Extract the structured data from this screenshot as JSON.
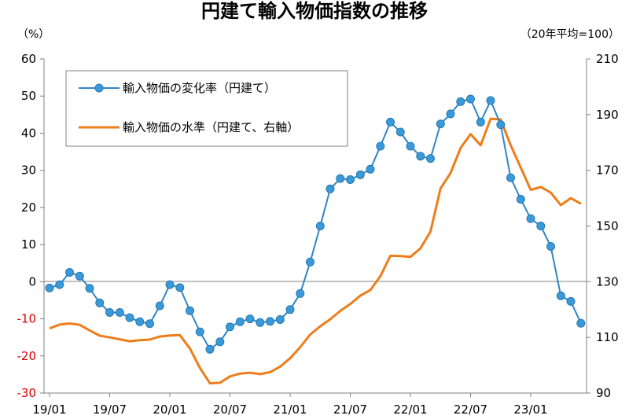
{
  "chart_data": {
    "type": "line",
    "title": "円建て輸入物価指数の推移",
    "left_unit": "（%）",
    "right_unit": "（20年平均=100）",
    "y_left": {
      "min": -30,
      "max": 60,
      "step": 10,
      "ticks": [
        "60",
        "50",
        "40",
        "30",
        "20",
        "10",
        "0",
        "-10",
        "-20",
        "-30"
      ]
    },
    "y_right": {
      "min": 90,
      "max": 210,
      "step": 20,
      "ticks": [
        "210",
        "190",
        "170",
        "150",
        "130",
        "110",
        "90"
      ]
    },
    "x_ticks": [
      "19/01",
      "19/07",
      "20/01",
      "20/07",
      "21/01",
      "21/07",
      "22/01",
      "22/07",
      "23/01"
    ],
    "x_months": [
      "19/01",
      "19/02",
      "19/03",
      "19/04",
      "19/05",
      "19/06",
      "19/07",
      "19/08",
      "19/09",
      "19/10",
      "19/11",
      "19/12",
      "20/01",
      "20/02",
      "20/03",
      "20/04",
      "20/05",
      "20/06",
      "20/07",
      "20/08",
      "20/09",
      "20/10",
      "20/11",
      "20/12",
      "21/01",
      "21/02",
      "21/03",
      "21/04",
      "21/05",
      "21/06",
      "21/07",
      "21/08",
      "21/09",
      "21/10",
      "21/11",
      "21/12",
      "22/01",
      "22/02",
      "22/03",
      "22/04",
      "22/05",
      "22/06",
      "22/07",
      "22/08",
      "22/09",
      "22/10",
      "22/11",
      "22/12",
      "23/01",
      "23/02",
      "23/03",
      "23/04",
      "23/05",
      "23/06"
    ],
    "colors": {
      "rate": "#2e86c6",
      "rate_marker": "#3a9ad9",
      "level": "#ee7d1a",
      "negative_ticks": "#e00000"
    },
    "series": [
      {
        "name": "輸入物価の変化率（円建て）",
        "axis": "left",
        "style": "line-markers",
        "values": [
          -1.7,
          -0.8,
          2.5,
          1.5,
          -1.8,
          -5.7,
          -8.3,
          -8.3,
          -9.7,
          -10.8,
          -11.3,
          -6.5,
          -0.8,
          -1.6,
          -7.8,
          -13.5,
          -18.2,
          -16.2,
          -12.2,
          -10.8,
          -10.0,
          -11.0,
          -10.7,
          -10.2,
          -7.5,
          -3.2,
          5.3,
          15.0,
          25.0,
          27.8,
          27.5,
          28.8,
          30.3,
          36.5,
          43.0,
          40.3,
          36.5,
          33.8,
          33.2,
          42.5,
          45.2,
          48.5,
          49.2,
          43.0,
          48.8,
          42.3,
          28.0,
          22.2,
          17.0,
          15.0,
          9.5,
          -3.8,
          -5.3,
          -11.2
        ]
      },
      {
        "name": "輸入物価の水準（円建て、右軸）",
        "axis": "right",
        "style": "line",
        "values": [
          113.2,
          114.6,
          115.0,
          114.5,
          112.5,
          110.6,
          110.0,
          109.3,
          108.6,
          109.0,
          109.2,
          110.3,
          110.7,
          110.8,
          106.0,
          99.0,
          93.5,
          93.7,
          96.0,
          97.0,
          97.3,
          96.8,
          97.5,
          99.5,
          102.5,
          106.5,
          111.0,
          114.0,
          116.5,
          119.5,
          122.0,
          125.0,
          127.0,
          132.0,
          139.3,
          139.2,
          138.9,
          142.0,
          148.0,
          163.5,
          169.0,
          178.0,
          183.0,
          179.0,
          188.5,
          188.3,
          179.0,
          171.0,
          163.0,
          164.0,
          162.0,
          157.5,
          160.0,
          158.0
        ]
      }
    ],
    "legend": {
      "placement": "top-left",
      "boxed": true
    },
    "grid": false
  }
}
